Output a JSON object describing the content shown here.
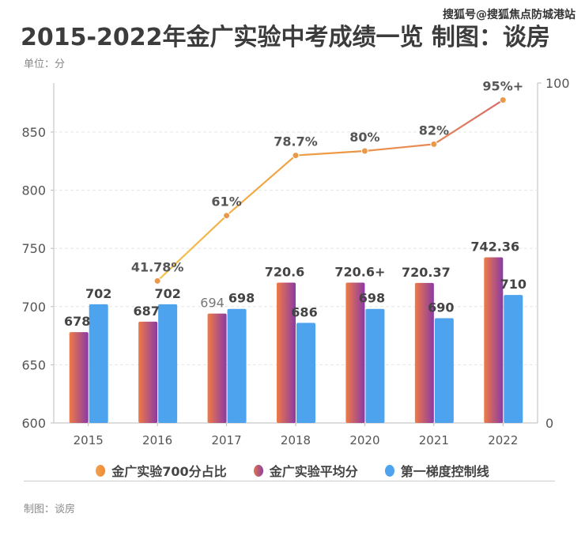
{
  "title": "2015-2022年金广实验中考成绩一览 制图：谈房",
  "watermark": "搜狐号@搜狐焦点防城港站",
  "unit": "单位：分",
  "credit": "制图：谈房",
  "chart_data": {
    "type": "bar",
    "title": "2015-2022年金广实验中考成绩一览",
    "categories": [
      "2015",
      "2016",
      "2017",
      "2018",
      "2020",
      "2021",
      "2022"
    ],
    "left_axis": {
      "ylim": [
        600,
        880
      ],
      "ticks": [
        600,
        650,
        700,
        750,
        800,
        850
      ]
    },
    "right_axis": {
      "ylim": [
        0,
        100
      ],
      "ticks": [
        0,
        100
      ]
    },
    "series": [
      {
        "name": "金广实验平均分",
        "type": "bar",
        "axis": "left",
        "values": [
          678,
          687,
          694,
          720.6,
          720.6,
          720.37,
          742.36
        ],
        "labels": [
          "678",
          "687",
          "694",
          "720.6",
          "720.6+",
          "720.37",
          "742.36"
        ],
        "color_start": "#f07a45",
        "color_end": "#8a3aa6"
      },
      {
        "name": "第一梯度控制线",
        "type": "bar",
        "axis": "left",
        "values": [
          702,
          702,
          698,
          686,
          698,
          690,
          710
        ],
        "labels": [
          "702",
          "702",
          "698",
          "686",
          "698",
          "690",
          "710"
        ],
        "color": "#4da3ee"
      },
      {
        "name": "金广实验700分占比",
        "type": "line",
        "axis": "right",
        "values": [
          null,
          41.78,
          61,
          78.7,
          80,
          82,
          95
        ],
        "labels": [
          "",
          "41.78%",
          "61%",
          "78.7%",
          "80%",
          "82%",
          "95%+"
        ],
        "color": "#ee9b45"
      }
    ],
    "legend": {
      "position": "bottom",
      "items": [
        "金广实验700分占比",
        "金广实验平均分",
        "第一梯度控制线"
      ]
    },
    "grid": true
  }
}
